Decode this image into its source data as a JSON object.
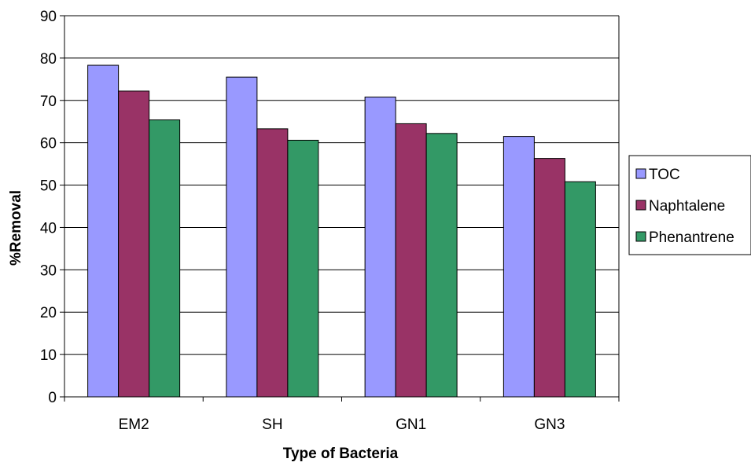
{
  "chart_data": {
    "type": "bar",
    "title": "",
    "xlabel": "Type of Bacteria",
    "ylabel": "%Removal",
    "ylim": [
      0,
      90
    ],
    "ytick_step": 10,
    "yticks": [
      "0",
      "10",
      "20",
      "30",
      "40",
      "50",
      "60",
      "70",
      "80",
      "90"
    ],
    "categories": [
      "EM2",
      "SH",
      "GN1",
      "GN3"
    ],
    "series": [
      {
        "name": "TOC",
        "values": [
          78.3,
          75.5,
          70.8,
          61.5
        ],
        "color": "#9999ff"
      },
      {
        "name": "Naphtalene",
        "values": [
          72.2,
          63.3,
          64.5,
          56.3
        ],
        "color": "#993366"
      },
      {
        "name": "Phenantrene",
        "values": [
          65.4,
          60.6,
          62.2,
          50.8
        ],
        "color": "#339966"
      }
    ],
    "grid": true,
    "legend_position": "right"
  }
}
